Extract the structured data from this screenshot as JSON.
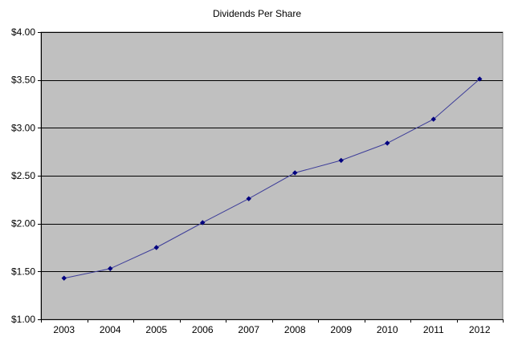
{
  "chart_data": {
    "type": "line",
    "title": "Dividends Per Share",
    "xlabel": "",
    "ylabel": "",
    "categories": [
      "2003",
      "2004",
      "2005",
      "2006",
      "2007",
      "2008",
      "2009",
      "2010",
      "2011",
      "2012"
    ],
    "series": [
      {
        "values": [
          1.43,
          1.53,
          1.75,
          2.01,
          2.26,
          2.53,
          2.66,
          2.84,
          3.09,
          3.51
        ]
      }
    ],
    "ylim": [
      1.0,
      4.0
    ],
    "yticks": [
      1.0,
      1.5,
      2.0,
      2.5,
      3.0,
      3.5,
      4.0
    ],
    "ytick_labels": [
      "$1.00",
      "$1.50",
      "$2.00",
      "$2.50",
      "$3.00",
      "$3.50",
      "$4.00"
    ],
    "grid": true,
    "legend": "none",
    "colors": {
      "plot_background": "#c0c0c0",
      "line": "#3d3d99",
      "marker": "#000080",
      "gridline": "#000000"
    }
  }
}
